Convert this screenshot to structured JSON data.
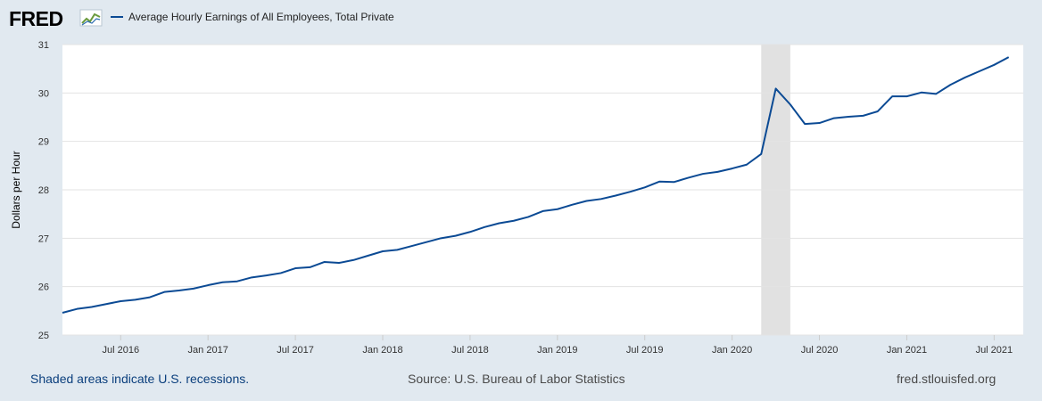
{
  "header": {
    "logo_text": "FRED",
    "legend_label": "Average Hourly Earnings of All Employees, Total Private"
  },
  "footer": {
    "note": "Shaded areas indicate U.S. recessions.",
    "source": "Source: U.S. Bureau of Labor Statistics",
    "site": "fred.stlouisfed.org"
  },
  "colors": {
    "series": "#0b4a94",
    "recession": "#e1e1e1",
    "background": "#e1e9f0",
    "plot": "#ffffff"
  },
  "chart_data": {
    "type": "line",
    "title": "",
    "xlabel": "",
    "ylabel": "Dollars per Hour",
    "ylim": [
      25,
      31
    ],
    "yticks": [
      25,
      26,
      27,
      28,
      29,
      30,
      31
    ],
    "grid": true,
    "legend": "top-left",
    "xlim": [
      "2016-03",
      "2021-09"
    ],
    "xticks": [
      {
        "label": "Jul 2016",
        "date": "2016-07"
      },
      {
        "label": "Jan 2017",
        "date": "2017-01"
      },
      {
        "label": "Jul 2017",
        "date": "2017-07"
      },
      {
        "label": "Jan 2018",
        "date": "2018-01"
      },
      {
        "label": "Jul 2018",
        "date": "2018-07"
      },
      {
        "label": "Jan 2019",
        "date": "2019-01"
      },
      {
        "label": "Jul 2019",
        "date": "2019-07"
      },
      {
        "label": "Jan 2020",
        "date": "2020-01"
      },
      {
        "label": "Jul 2020",
        "date": "2020-07"
      },
      {
        "label": "Jan 2021",
        "date": "2021-01"
      },
      {
        "label": "Jul 2021",
        "date": "2021-07"
      }
    ],
    "recessions": [
      {
        "start": "2020-03",
        "end": "2020-05"
      }
    ],
    "series": [
      {
        "name": "Average Hourly Earnings of All Employees, Total Private",
        "x": [
          "2016-03",
          "2016-04",
          "2016-05",
          "2016-06",
          "2016-07",
          "2016-08",
          "2016-09",
          "2016-10",
          "2016-11",
          "2016-12",
          "2017-01",
          "2017-02",
          "2017-03",
          "2017-04",
          "2017-05",
          "2017-06",
          "2017-07",
          "2017-08",
          "2017-09",
          "2017-10",
          "2017-11",
          "2017-12",
          "2018-01",
          "2018-02",
          "2018-03",
          "2018-04",
          "2018-05",
          "2018-06",
          "2018-07",
          "2018-08",
          "2018-09",
          "2018-10",
          "2018-11",
          "2018-12",
          "2019-01",
          "2019-02",
          "2019-03",
          "2019-04",
          "2019-05",
          "2019-06",
          "2019-07",
          "2019-08",
          "2019-09",
          "2019-10",
          "2019-11",
          "2019-12",
          "2020-01",
          "2020-02",
          "2020-03",
          "2020-04",
          "2020-05",
          "2020-06",
          "2020-07",
          "2020-08",
          "2020-09",
          "2020-10",
          "2020-11",
          "2020-12",
          "2021-01",
          "2021-02",
          "2021-03",
          "2021-04",
          "2021-05",
          "2021-06",
          "2021-07",
          "2021-08"
        ],
        "y": [
          25.46,
          25.54,
          25.58,
          25.64,
          25.7,
          25.73,
          25.78,
          25.89,
          25.92,
          25.96,
          26.03,
          26.09,
          26.11,
          26.19,
          26.23,
          26.28,
          26.38,
          26.4,
          26.51,
          26.49,
          26.55,
          26.64,
          26.73,
          26.76,
          26.84,
          26.92,
          27.0,
          27.05,
          27.13,
          27.23,
          27.31,
          27.36,
          27.44,
          27.56,
          27.6,
          27.69,
          27.77,
          27.81,
          27.88,
          27.96,
          28.05,
          28.17,
          28.16,
          28.25,
          28.33,
          28.37,
          28.44,
          28.52,
          28.74,
          30.09,
          29.76,
          29.36,
          29.38,
          29.48,
          29.51,
          29.53,
          29.62,
          29.93,
          29.93,
          30.01,
          29.98,
          30.17,
          30.32,
          30.45,
          30.58,
          30.74
        ]
      }
    ]
  }
}
